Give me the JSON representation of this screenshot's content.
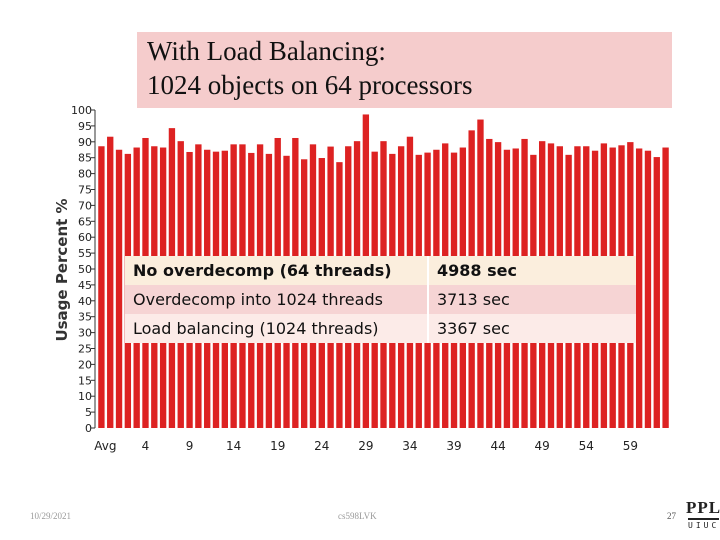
{
  "slide": {
    "title_line1": "With Load Balancing:",
    "title_line2": "1024 objects on 64 processors",
    "footer_date": "10/29/2021",
    "footer_course": "cs598LVK",
    "page_number": "27",
    "logo_text": "PPL",
    "logo_subtext": "UIUC"
  },
  "table": {
    "rows": [
      {
        "label": "No overdecomp (64 threads)",
        "value": "4988 sec"
      },
      {
        "label": "Overdecomp into 1024 threads",
        "value": "3713 sec"
      },
      {
        "label": "Load balancing (1024 threads)",
        "value": "3367 sec"
      }
    ]
  },
  "colors": {
    "bar": "#dd2222",
    "title_bg": "#f5cccc"
  },
  "chart_data": {
    "type": "bar",
    "ylabel": "Usage Percent %",
    "ylim": [
      0,
      100
    ],
    "yticks": [
      0,
      5,
      10,
      15,
      20,
      25,
      30,
      35,
      40,
      45,
      50,
      55,
      60,
      65,
      70,
      75,
      80,
      85,
      90,
      95,
      100
    ],
    "categories": [
      "Avg",
      "0",
      "1",
      "2",
      "3",
      "4",
      "5",
      "6",
      "7",
      "8",
      "9",
      "10",
      "11",
      "12",
      "13",
      "14",
      "15",
      "16",
      "17",
      "18",
      "19",
      "20",
      "21",
      "22",
      "23",
      "24",
      "25",
      "26",
      "27",
      "28",
      "29",
      "30",
      "31",
      "32",
      "33",
      "34",
      "35",
      "36",
      "37",
      "38",
      "39",
      "40",
      "41",
      "42",
      "43",
      "44",
      "45",
      "46",
      "47",
      "48",
      "49",
      "50",
      "51",
      "52",
      "53",
      "54",
      "55",
      "56",
      "57",
      "58",
      "59",
      "60",
      "61",
      "62",
      "63"
    ],
    "xtick_labels": [
      "Avg",
      "4",
      "9",
      "14",
      "19",
      "24",
      "29",
      "34",
      "39",
      "44",
      "49",
      "54",
      "59"
    ],
    "xtick_indices": [
      0,
      5,
      10,
      15,
      20,
      25,
      30,
      35,
      40,
      45,
      50,
      55,
      60
    ],
    "values": [
      88.6,
      91.6,
      87.5,
      86.2,
      88.2,
      91.2,
      88.6,
      88.2,
      94.3,
      90.2,
      86.8,
      89.2,
      87.5,
      86.9,
      87.2,
      89.2,
      89.2,
      86.5,
      89.2,
      86.2,
      91.2,
      85.6,
      91.2,
      84.5,
      89.2,
      84.9,
      88.5,
      83.6,
      88.6,
      90.2,
      98.6,
      86.9,
      90.2,
      86.2,
      88.6,
      91.6,
      85.9,
      86.6,
      87.5,
      89.5,
      86.6,
      88.2,
      93.6,
      97.0,
      90.9,
      89.9,
      87.5,
      87.9,
      90.9,
      85.9,
      90.2,
      89.5,
      88.6,
      85.9,
      88.6,
      88.6,
      87.2,
      89.5,
      88.2,
      88.9,
      89.9,
      87.9,
      87.2,
      85.2,
      88.2
    ]
  }
}
